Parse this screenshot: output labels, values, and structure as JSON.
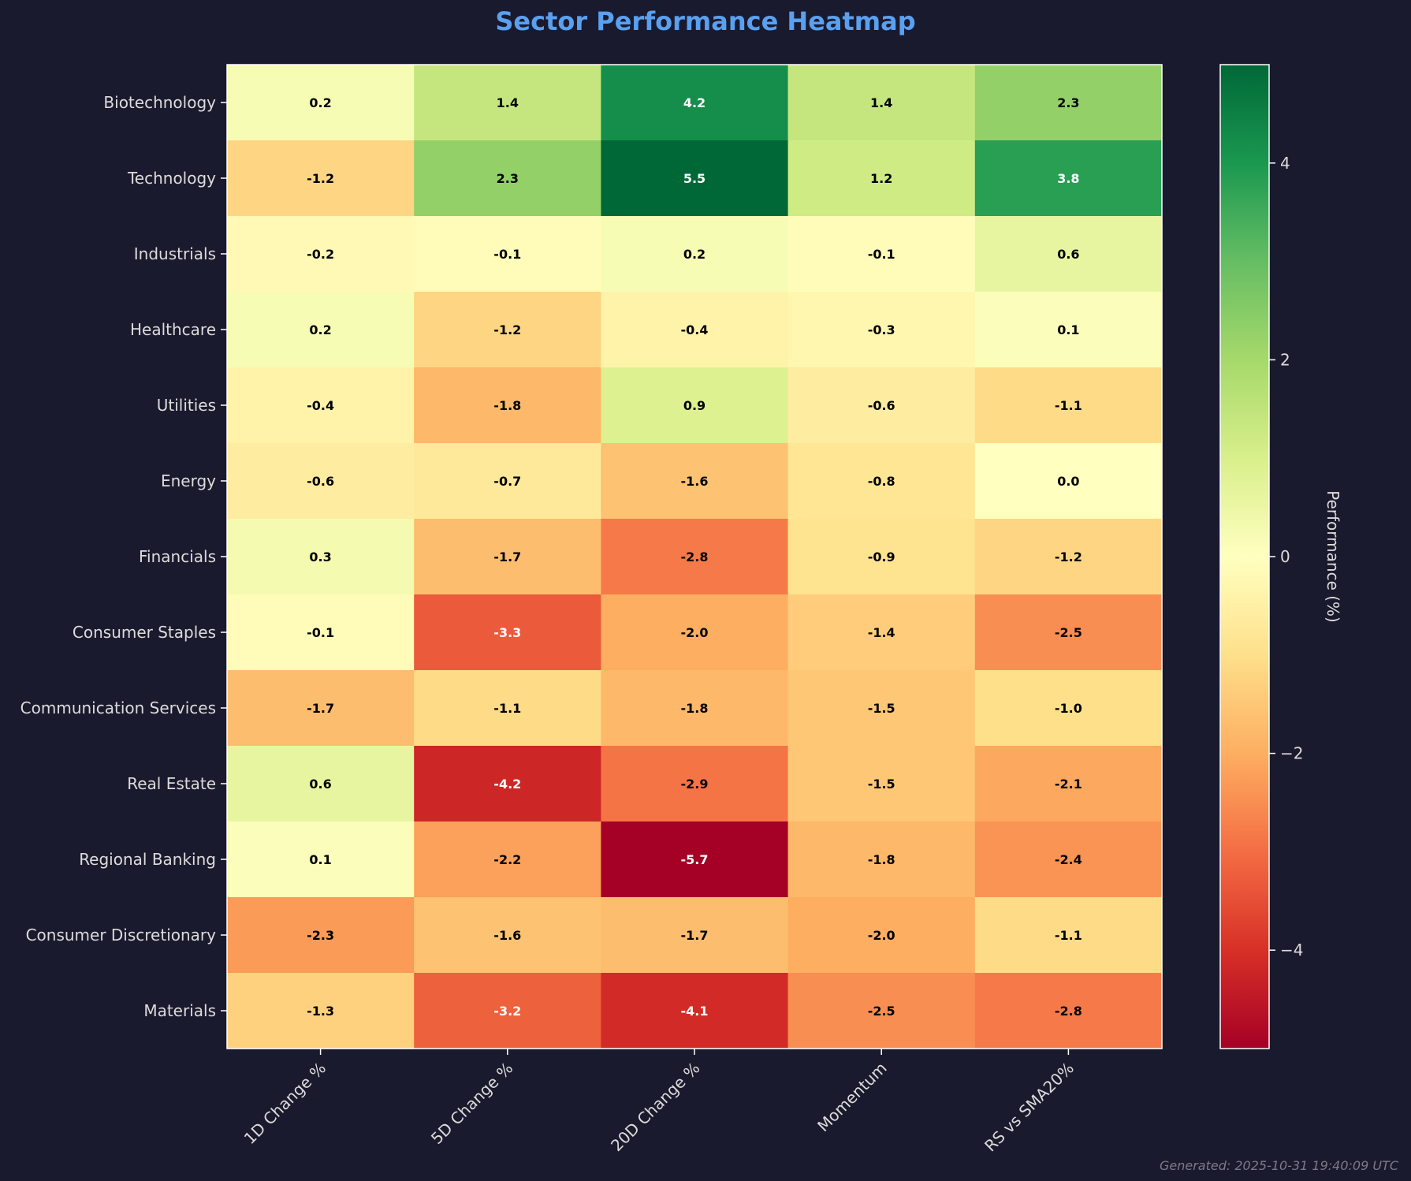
{
  "chart_data": {
    "type": "heatmap",
    "title": "Sector Performance Heatmap",
    "rows": [
      "Biotechnology",
      "Technology",
      "Industrials",
      "Healthcare",
      "Utilities",
      "Energy",
      "Financials",
      "Consumer Staples",
      "Communication Services",
      "Real Estate",
      "Regional Banking",
      "Consumer Discretionary",
      "Materials"
    ],
    "columns": [
      "1D Change %",
      "5D Change %",
      "20D Change %",
      "Momentum",
      "RS vs SMA20%"
    ],
    "values": [
      [
        0.2,
        1.4,
        4.2,
        1.4,
        2.3
      ],
      [
        -1.2,
        2.3,
        5.5,
        1.2,
        3.8
      ],
      [
        -0.2,
        -0.1,
        0.2,
        -0.1,
        0.6
      ],
      [
        0.2,
        -1.2,
        -0.4,
        -0.3,
        0.1
      ],
      [
        -0.4,
        -1.8,
        0.9,
        -0.6,
        -1.1
      ],
      [
        -0.6,
        -0.7,
        -1.6,
        -0.8,
        0.0
      ],
      [
        0.3,
        -1.7,
        -2.8,
        -0.9,
        -1.2
      ],
      [
        -0.1,
        -3.3,
        -2.0,
        -1.4,
        -2.5
      ],
      [
        -1.7,
        -1.1,
        -1.8,
        -1.5,
        -1.0
      ],
      [
        0.6,
        -4.2,
        -2.9,
        -1.5,
        -2.1
      ],
      [
        0.1,
        -2.2,
        -5.7,
        -1.8,
        -2.4
      ],
      [
        -2.3,
        -1.6,
        -1.7,
        -2.0,
        -1.1
      ],
      [
        -1.3,
        -3.2,
        -4.1,
        -2.5,
        -2.8
      ]
    ],
    "colormap": "RdYlGn",
    "vmin": -5,
    "vmax": 5,
    "colorbar": {
      "label": "Performance (%)",
      "ticks": [
        4,
        2,
        0,
        -2,
        -4
      ],
      "tick_labels": [
        "4",
        "2",
        "0",
        "−2",
        "−4"
      ]
    },
    "grid": false
  },
  "footer": "Generated: 2025-10-31 19:40:09 UTC",
  "colors": {
    "background": "#1a1a2e",
    "title": "#5aa0f0",
    "label_text": "#dcdcdc",
    "axis_line": "#ffffff",
    "footer_text": "#7a7a88",
    "cell_text_dark": "#000000",
    "cell_text_light": "#ffffff"
  }
}
